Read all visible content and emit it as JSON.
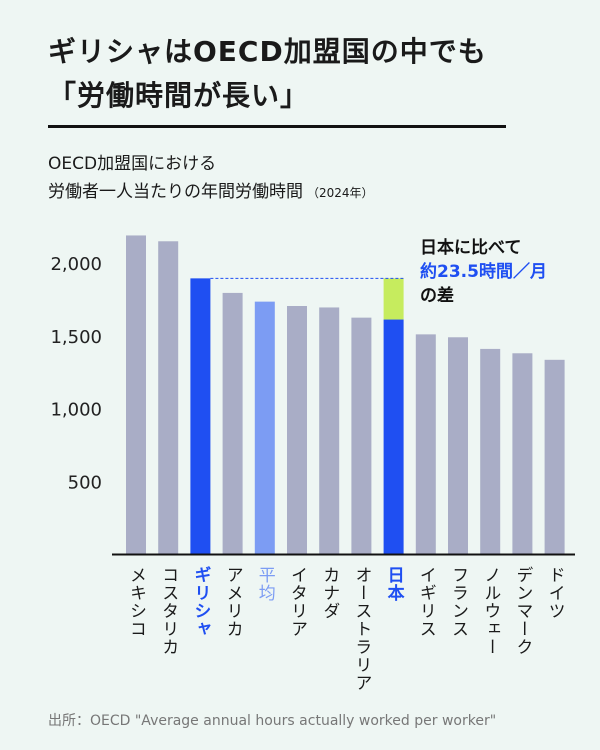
{
  "headline": {
    "line1": "ギリシャはOECD加盟国の中でも",
    "line2": "「労働時間が長い」"
  },
  "subtitle": {
    "line1": "OECD加盟国における",
    "line2": "労働者一人当たりの年間労働時間",
    "year": "（2024年）"
  },
  "annotation": {
    "line1": "日本に比べて",
    "line2": "約23.5時間／月",
    "line3": "の差"
  },
  "source": "出所：OECD \"Average annual hours actually worked per worker\"",
  "colors": {
    "background": "#eef6f3",
    "bar_default": "#a9adc6",
    "bar_highlight": "#1f4ff2",
    "bar_average": "#7c9cf3",
    "gap_segment": "#c6ec5e",
    "annotation_accent": "#1f4ff2"
  },
  "chart_data": {
    "type": "bar",
    "categories": [
      "メキシコ",
      "コスタリカ",
      "ギリシャ",
      "アメリカ",
      "平均",
      "イタリア",
      "カナダ",
      "オーストラリア",
      "日本",
      "イギリス",
      "フランス",
      "ノルウェー",
      "デンマーク",
      "ドイツ"
    ],
    "values": [
      2190,
      2150,
      1895,
      1795,
      1735,
      1705,
      1695,
      1625,
      1612,
      1510,
      1490,
      1410,
      1380,
      1335
    ],
    "highlight": [
      "ギリシャ",
      "日本"
    ],
    "average_category": "平均",
    "gap_reference": {
      "from": "日本",
      "to": "ギリシャ",
      "upper_value": 1895
    },
    "yticks": [
      500,
      1000,
      1500,
      2000
    ],
    "ytick_labels": [
      "500",
      "1,000",
      "1,500",
      "2,000"
    ],
    "ylim": [
      0,
      2200
    ],
    "grid": false
  }
}
